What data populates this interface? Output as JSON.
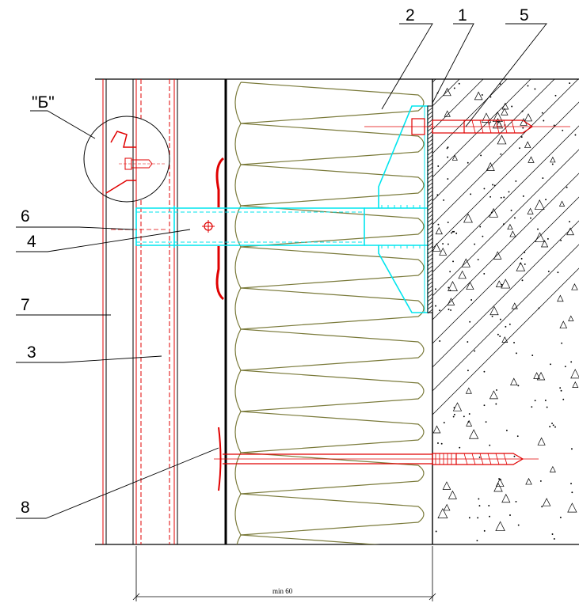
{
  "labels": {
    "callout_1": "1",
    "callout_2": "2",
    "callout_3": "3",
    "callout_4": "4",
    "callout_5": "5",
    "callout_6": "6",
    "callout_7": "7",
    "callout_8": "8",
    "detail_b": "\"Б\""
  },
  "dimension": {
    "text": "min 60"
  },
  "colors": {
    "line": "#000000",
    "fastener": "#e00000",
    "bracket": "#00e5ee",
    "insulation": "#7a7a3a"
  }
}
